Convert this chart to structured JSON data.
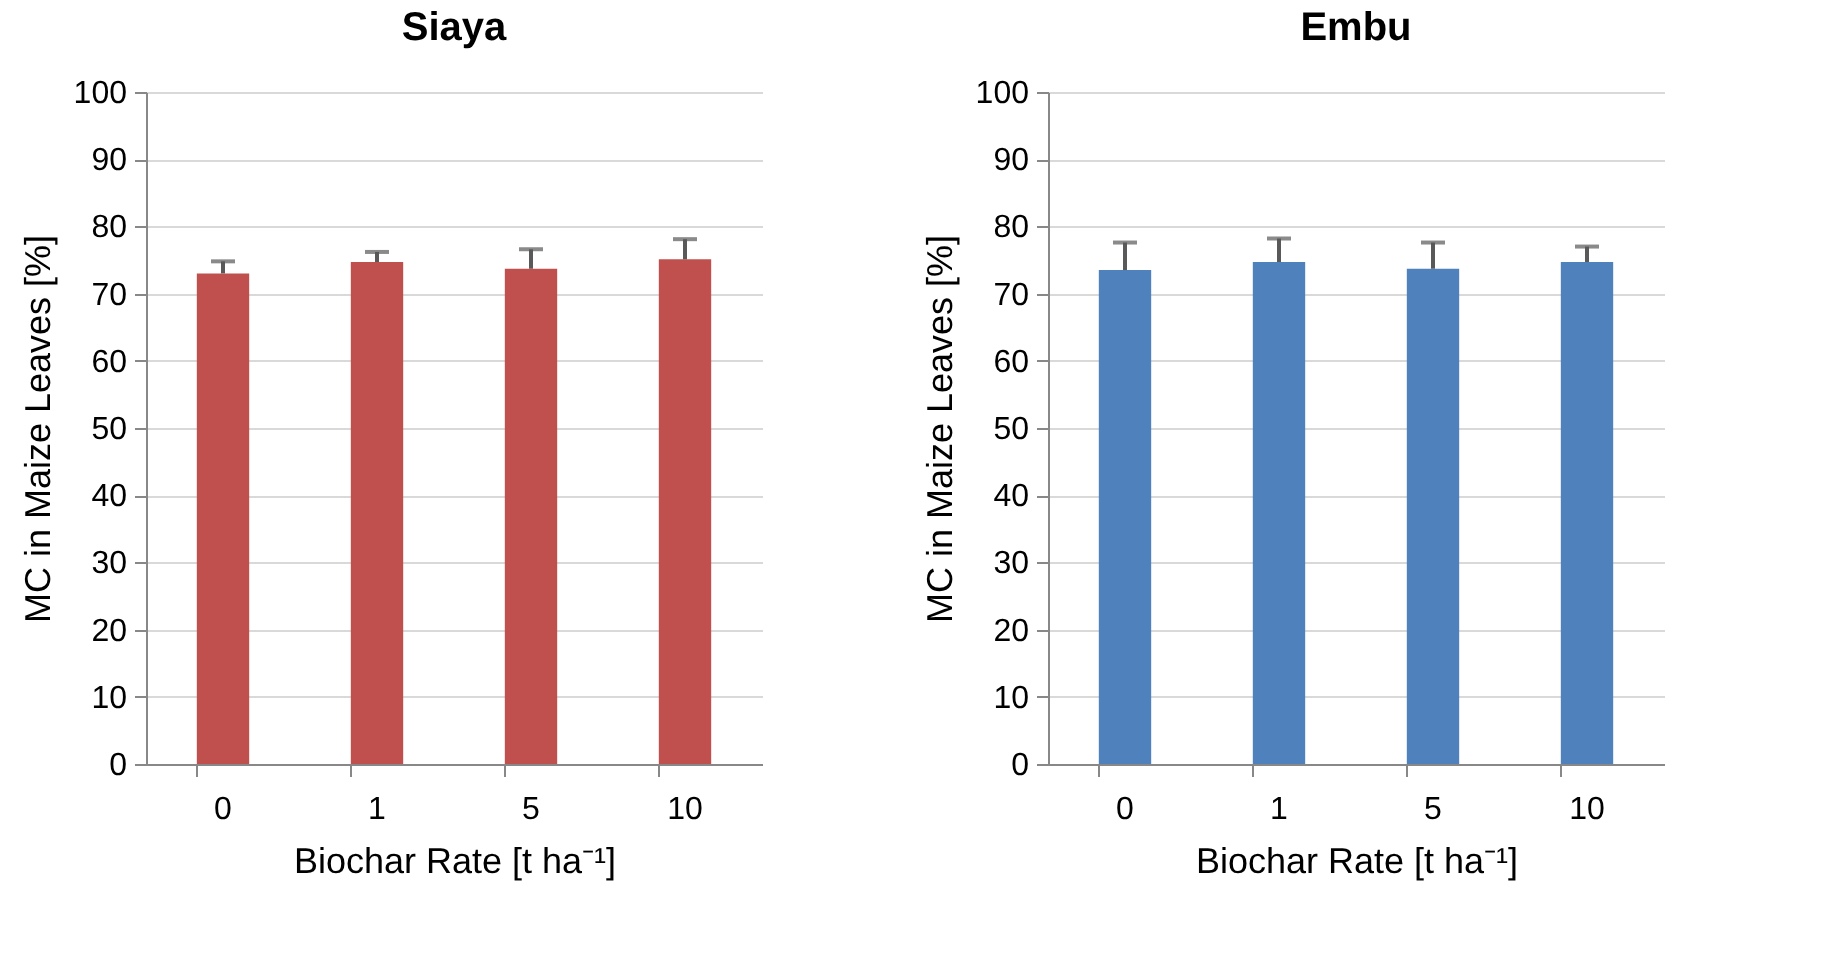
{
  "chart_data": [
    {
      "type": "bar",
      "title": "Siaya",
      "xlabel": "Biochar Rate [t ha⁻¹]",
      "ylabel": "MC in Maize Leaves [%]",
      "categories": [
        "0",
        "1",
        "5",
        "10"
      ],
      "values": [
        73.0,
        74.7,
        73.7,
        75.1
      ],
      "errors": [
        [
          73.0,
          74.8
        ],
        [
          74.7,
          76.2
        ],
        [
          73.7,
          76.6
        ],
        [
          75.1,
          78.1
        ]
      ],
      "color": "#c0504d",
      "ylim": [
        0,
        100
      ],
      "yticks": [
        0,
        10,
        20,
        30,
        40,
        50,
        60,
        70,
        80,
        90,
        100
      ],
      "grid": "y"
    },
    {
      "type": "bar",
      "title": "Embu",
      "xlabel": "Biochar Rate [t ha⁻¹]",
      "ylabel": "MC in Maize Leaves [%]",
      "categories": [
        "0",
        "1",
        "5",
        "10"
      ],
      "values": [
        73.5,
        74.7,
        73.7,
        74.7
      ],
      "errors": [
        [
          73.5,
          77.6
        ],
        [
          74.7,
          78.2
        ],
        [
          73.7,
          77.6
        ],
        [
          74.7,
          77.0
        ]
      ],
      "color": "#4f81bd",
      "ylim": [
        0,
        100
      ],
      "yticks": [
        0,
        10,
        20,
        30,
        40,
        50,
        60,
        70,
        80,
        90,
        100
      ],
      "grid": "y"
    }
  ]
}
